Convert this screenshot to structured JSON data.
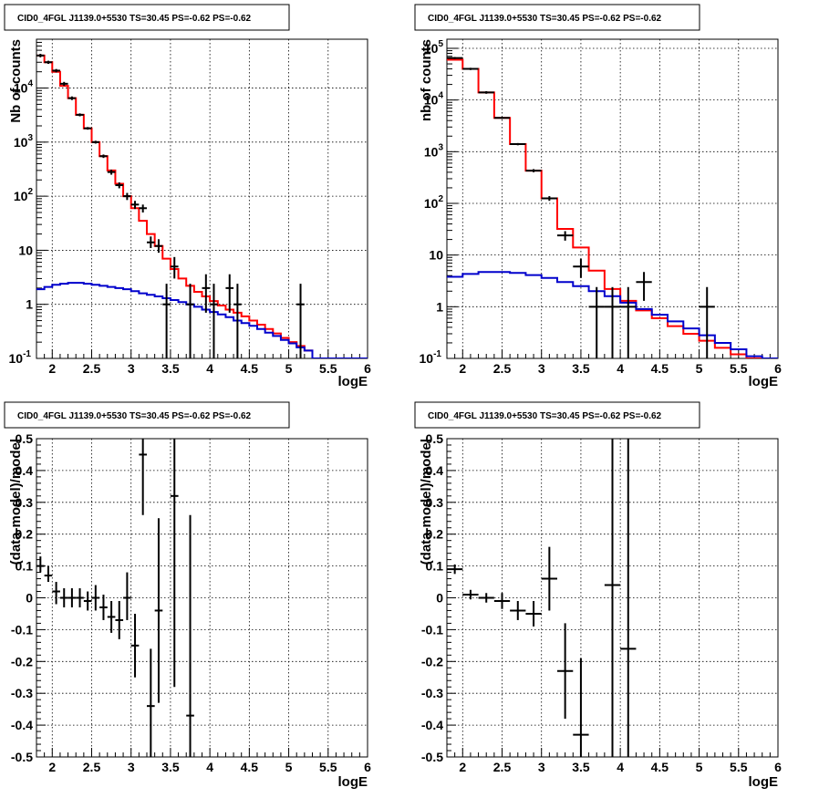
{
  "chart_data": [
    {
      "type": "line",
      "title": "CID0_4FGL J1139.0+5530 TS=30.45 PS=-0.62 PS=-0.62",
      "xlabel": "logE",
      "ylabel": "Nb of counts",
      "xlim": [
        1.8,
        6.0
      ],
      "ylim": [
        0.1,
        80000
      ],
      "yscale": "log",
      "grid": true,
      "x_ticks": [
        "2",
        "2.5",
        "3",
        "3.5",
        "4",
        "4.5",
        "5",
        "5.5",
        "6"
      ],
      "y_ticks": [
        "10^-1",
        "1",
        "10",
        "10^2",
        "10^3",
        "10^4"
      ],
      "series": [
        {
          "color": "#ff0000",
          "edges": [
            1.8,
            1.9,
            2.0,
            2.1,
            2.2,
            2.3,
            2.4,
            2.5,
            2.6,
            2.7,
            2.8,
            2.9,
            3.0,
            3.1,
            3.2,
            3.3,
            3.4,
            3.5,
            3.6,
            3.7,
            3.8,
            3.9,
            4.0,
            4.1,
            4.2,
            4.3,
            4.4,
            4.5,
            4.6,
            4.7,
            4.8,
            4.9,
            5.0,
            5.1,
            5.2,
            5.3,
            5.4,
            5.5,
            5.6,
            5.7,
            5.8,
            5.9,
            6.0
          ],
          "values": [
            40000,
            30000,
            20000,
            11000,
            6500,
            3200,
            1800,
            1000,
            550,
            300,
            170,
            100,
            60,
            35,
            20,
            12,
            7,
            4.5,
            3,
            2.2,
            1.7,
            1.4,
            1.15,
            0.95,
            0.8,
            0.7,
            0.6,
            0.5,
            0.42,
            0.35,
            0.29,
            0.24,
            0.2,
            0.17,
            0.14,
            0.1,
            0.1,
            0.1,
            0.1,
            0.1,
            0.1,
            0.1
          ]
        },
        {
          "color": "#0000cc",
          "edges": [
            1.8,
            1.9,
            2.0,
            2.1,
            2.2,
            2.3,
            2.4,
            2.5,
            2.6,
            2.7,
            2.8,
            2.9,
            3.0,
            3.1,
            3.2,
            3.3,
            3.4,
            3.5,
            3.6,
            3.7,
            3.8,
            3.9,
            4.0,
            4.1,
            4.2,
            4.3,
            4.4,
            4.5,
            4.6,
            4.7,
            4.8,
            4.9,
            5.0,
            5.1,
            5.2,
            5.3,
            5.4,
            5.5,
            5.6,
            5.7,
            5.8,
            5.9,
            6.0
          ],
          "values": [
            1.9,
            2.1,
            2.3,
            2.4,
            2.5,
            2.5,
            2.4,
            2.3,
            2.2,
            2.1,
            2.0,
            1.9,
            1.75,
            1.6,
            1.5,
            1.4,
            1.3,
            1.2,
            1.1,
            1.0,
            0.9,
            0.8,
            0.72,
            0.65,
            0.58,
            0.5,
            0.45,
            0.4,
            0.35,
            0.3,
            0.26,
            0.22,
            0.19,
            0.16,
            0.14,
            0.1,
            0.1,
            0.1,
            0.1,
            0.1,
            0.1,
            0.1
          ]
        }
      ],
      "points": [
        {
          "x": 1.85,
          "y": 40000,
          "ylo": 37000,
          "yhi": 43000
        },
        {
          "x": 1.95,
          "y": 30000,
          "ylo": 28000,
          "yhi": 32000
        },
        {
          "x": 2.05,
          "y": 21000,
          "ylo": 19500,
          "yhi": 22500
        },
        {
          "x": 2.15,
          "y": 12000,
          "ylo": 11000,
          "yhi": 13000
        },
        {
          "x": 2.25,
          "y": 6500,
          "ylo": 6000,
          "yhi": 7000
        },
        {
          "x": 2.35,
          "y": 3200,
          "ylo": 3000,
          "yhi": 3400
        },
        {
          "x": 2.45,
          "y": 1800,
          "ylo": 1700,
          "yhi": 1900
        },
        {
          "x": 2.55,
          "y": 1000,
          "ylo": 940,
          "yhi": 1060
        },
        {
          "x": 2.65,
          "y": 550,
          "ylo": 510,
          "yhi": 590
        },
        {
          "x": 2.75,
          "y": 280,
          "ylo": 250,
          "yhi": 310
        },
        {
          "x": 2.85,
          "y": 160,
          "ylo": 140,
          "yhi": 180
        },
        {
          "x": 2.95,
          "y": 100,
          "ylo": 85,
          "yhi": 115
        },
        {
          "x": 3.05,
          "y": 70,
          "ylo": 58,
          "yhi": 82
        },
        {
          "x": 3.15,
          "y": 60,
          "ylo": 50,
          "yhi": 70
        },
        {
          "x": 3.25,
          "y": 14,
          "ylo": 11,
          "yhi": 18
        },
        {
          "x": 3.35,
          "y": 12,
          "ylo": 9,
          "yhi": 16
        },
        {
          "x": 3.45,
          "y": 1,
          "ylo": 0.1,
          "yhi": 2.4
        },
        {
          "x": 3.55,
          "y": 5,
          "ylo": 3,
          "yhi": 7.5
        },
        {
          "x": 3.75,
          "y": 1,
          "ylo": 0.1,
          "yhi": 2.4
        },
        {
          "x": 3.95,
          "y": 2,
          "ylo": 0.7,
          "yhi": 3.6
        },
        {
          "x": 4.05,
          "y": 1,
          "ylo": 0.1,
          "yhi": 2.4
        },
        {
          "x": 4.25,
          "y": 2,
          "ylo": 0.7,
          "yhi": 3.6
        },
        {
          "x": 4.35,
          "y": 1,
          "ylo": 0.1,
          "yhi": 2.4
        },
        {
          "x": 5.15,
          "y": 1,
          "ylo": 0.1,
          "yhi": 2.4
        }
      ]
    },
    {
      "type": "line",
      "title": "CID0_4FGL J1139.0+5530 TS=30.45 PS=-0.62 PS=-0.62",
      "xlabel": "logE",
      "ylabel": "nb of counts",
      "xlim": [
        1.8,
        6.0
      ],
      "ylim": [
        0.1,
        150000
      ],
      "yscale": "log",
      "grid": true,
      "x_ticks": [
        "2",
        "2.5",
        "3",
        "3.5",
        "4",
        "4.5",
        "5",
        "5.5",
        "6"
      ],
      "y_ticks": [
        "10^-1",
        "1",
        "10",
        "10^2",
        "10^3",
        "10^4",
        "10^5"
      ],
      "series": [
        {
          "color": "#ff0000",
          "edges": [
            1.8,
            2.0,
            2.2,
            2.4,
            2.6,
            2.8,
            3.0,
            3.2,
            3.4,
            3.6,
            3.8,
            4.0,
            4.2,
            4.4,
            4.6,
            4.8,
            5.0,
            5.2,
            5.4,
            5.6,
            5.8,
            6.0
          ],
          "values": [
            60000,
            40000,
            14000,
            4500,
            1400,
            430,
            125,
            32,
            14,
            5,
            2.2,
            1.3,
            0.85,
            0.6,
            0.42,
            0.3,
            0.22,
            0.16,
            0.12,
            0.1,
            0.1
          ]
        },
        {
          "color": "#0000cc",
          "edges": [
            1.8,
            2.0,
            2.2,
            2.4,
            2.6,
            2.8,
            3.0,
            3.2,
            3.4,
            3.6,
            3.8,
            4.0,
            4.2,
            4.4,
            4.6,
            4.8,
            5.0,
            5.2,
            5.4,
            5.6,
            5.8,
            6.0
          ],
          "values": [
            3.8,
            4.3,
            4.7,
            4.7,
            4.5,
            4.1,
            3.6,
            3.0,
            2.5,
            2.0,
            1.6,
            1.2,
            0.9,
            0.7,
            0.52,
            0.38,
            0.28,
            0.2,
            0.15,
            0.11,
            0.1
          ]
        }
      ],
      "points": [
        {
          "x": 1.9,
          "y": 65000,
          "ylo": 62000,
          "yhi": 68000
        },
        {
          "x": 2.1,
          "y": 40000,
          "ylo": 38000,
          "yhi": 42000
        },
        {
          "x": 2.3,
          "y": 14000,
          "ylo": 13200,
          "yhi": 14800
        },
        {
          "x": 2.5,
          "y": 4500,
          "ylo": 4300,
          "yhi": 4700
        },
        {
          "x": 2.7,
          "y": 1400,
          "ylo": 1330,
          "yhi": 1470
        },
        {
          "x": 2.9,
          "y": 430,
          "ylo": 400,
          "yhi": 460
        },
        {
          "x": 3.1,
          "y": 125,
          "ylo": 112,
          "yhi": 138
        },
        {
          "x": 3.3,
          "y": 24,
          "ylo": 19,
          "yhi": 29
        },
        {
          "x": 3.5,
          "y": 6,
          "ylo": 3.6,
          "yhi": 8.5
        },
        {
          "x": 3.7,
          "y": 1,
          "ylo": 0.1,
          "yhi": 2.4
        },
        {
          "x": 3.9,
          "y": 1,
          "ylo": 0.1,
          "yhi": 2.4
        },
        {
          "x": 4.1,
          "y": 1,
          "ylo": 0.1,
          "yhi": 2.4
        },
        {
          "x": 4.3,
          "y": 3,
          "ylo": 1.3,
          "yhi": 4.7
        },
        {
          "x": 5.1,
          "y": 1,
          "ylo": 0.1,
          "yhi": 2.4
        }
      ]
    },
    {
      "type": "scatter",
      "title": "CID0_4FGL J1139.0+5530 TS=30.45 PS=-0.62 PS=-0.62",
      "xlabel": "logE",
      "ylabel": "(data-model)/model",
      "xlim": [
        1.8,
        6.0
      ],
      "ylim": [
        -0.5,
        0.5
      ],
      "grid": true,
      "x_ticks": [
        "2",
        "2.5",
        "3",
        "3.5",
        "4",
        "4.5",
        "5",
        "5.5",
        "6"
      ],
      "y_ticks": [
        "-0.5",
        "-0.4",
        "-0.3",
        "-0.2",
        "-0.1",
        "0",
        "0.1",
        "0.2",
        "0.3",
        "0.4",
        "0.5"
      ],
      "points": [
        {
          "x": 1.85,
          "y": 0.1,
          "ylo": 0.08,
          "yhi": 0.13
        },
        {
          "x": 1.95,
          "y": 0.07,
          "ylo": 0.05,
          "yhi": 0.1
        },
        {
          "x": 2.05,
          "y": 0.02,
          "ylo": -0.02,
          "yhi": 0.05
        },
        {
          "x": 2.15,
          "y": 0.0,
          "ylo": -0.03,
          "yhi": 0.03
        },
        {
          "x": 2.25,
          "y": 0.0,
          "ylo": -0.03,
          "yhi": 0.03
        },
        {
          "x": 2.35,
          "y": 0.0,
          "ylo": -0.03,
          "yhi": 0.03
        },
        {
          "x": 2.45,
          "y": -0.01,
          "ylo": -0.04,
          "yhi": 0.02
        },
        {
          "x": 2.55,
          "y": 0.0,
          "ylo": -0.04,
          "yhi": 0.04
        },
        {
          "x": 2.65,
          "y": -0.03,
          "ylo": -0.07,
          "yhi": 0.01
        },
        {
          "x": 2.75,
          "y": -0.06,
          "ylo": -0.11,
          "yhi": -0.01
        },
        {
          "x": 2.85,
          "y": -0.07,
          "ylo": -0.13,
          "yhi": -0.01
        },
        {
          "x": 2.95,
          "y": 0.0,
          "ylo": -0.07,
          "yhi": 0.08
        },
        {
          "x": 3.05,
          "y": -0.15,
          "ylo": -0.25,
          "yhi": -0.05
        },
        {
          "x": 3.15,
          "y": 0.45,
          "ylo": 0.26,
          "yhi": 0.58
        },
        {
          "x": 3.25,
          "y": -0.34,
          "ylo": -0.55,
          "yhi": -0.16
        },
        {
          "x": 3.35,
          "y": -0.04,
          "ylo": -0.33,
          "yhi": 0.25
        },
        {
          "x": 3.55,
          "y": 0.32,
          "ylo": -0.28,
          "yhi": 0.62
        },
        {
          "x": 3.75,
          "y": -0.37,
          "ylo": -0.99,
          "yhi": 0.26
        }
      ]
    },
    {
      "type": "scatter",
      "title": "CID0_4FGL J1139.0+5530 TS=30.45 PS=-0.62 PS=-0.62",
      "xlabel": "logE",
      "ylabel": "(data-model)/model",
      "xlim": [
        1.8,
        6.0
      ],
      "ylim": [
        -0.5,
        0.5
      ],
      "grid": true,
      "x_ticks": [
        "2",
        "2.5",
        "3",
        "3.5",
        "4",
        "4.5",
        "5",
        "5.5",
        "6"
      ],
      "y_ticks": [
        "-0.5",
        "-0.4",
        "-0.3",
        "-0.2",
        "-0.1",
        "0",
        "0.1",
        "0.2",
        "0.3",
        "0.4",
        "0.5"
      ],
      "points": [
        {
          "x": 1.9,
          "y": 0.09,
          "ylo": 0.075,
          "yhi": 0.105
        },
        {
          "x": 2.1,
          "y": 0.01,
          "ylo": -0.005,
          "yhi": 0.025
        },
        {
          "x": 2.3,
          "y": 0.0,
          "ylo": -0.015,
          "yhi": 0.015
        },
        {
          "x": 2.5,
          "y": -0.01,
          "ylo": -0.035,
          "yhi": 0.015
        },
        {
          "x": 2.7,
          "y": -0.04,
          "ylo": -0.07,
          "yhi": -0.01
        },
        {
          "x": 2.9,
          "y": -0.05,
          "ylo": -0.09,
          "yhi": -0.01
        },
        {
          "x": 3.1,
          "y": 0.06,
          "ylo": -0.04,
          "yhi": 0.16
        },
        {
          "x": 3.3,
          "y": -0.23,
          "ylo": -0.38,
          "yhi": -0.08
        },
        {
          "x": 3.5,
          "y": -0.43,
          "ylo": -0.7,
          "yhi": -0.19
        },
        {
          "x": 3.9,
          "y": 0.04,
          "ylo": -0.9,
          "yhi": 0.9
        },
        {
          "x": 4.1,
          "y": -0.16,
          "ylo": -0.9,
          "yhi": 0.9
        }
      ]
    }
  ]
}
